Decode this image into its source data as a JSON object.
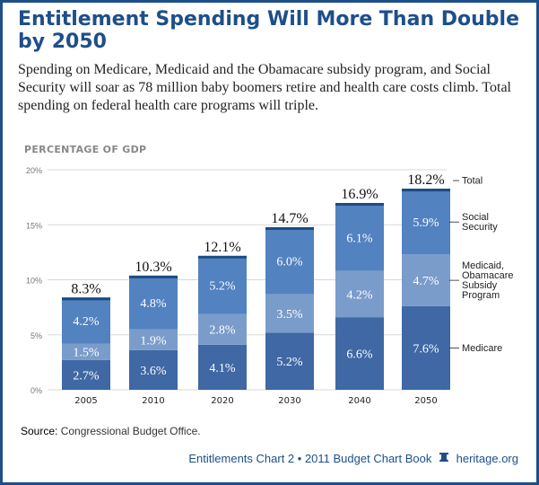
{
  "title": "Entitlement Spending Will More Than Double by 2050",
  "subtitle": "Spending on Medicare, Medicaid and the Obamacare subsidy program, and Social Security will soar as 78 million baby boomers retire and health care costs climb. Total spending on federal health care programs will triple.",
  "source_label": "Source:",
  "source_text": "Congressional Budget Office.",
  "footer": {
    "text": "Entitlements Chart 2 • 2011 Budget Chart Book",
    "site": "heritage.org",
    "icon": "liberty-bell-icon"
  },
  "colors": {
    "medicare": "#3f68a4",
    "medicaid": "#7a9ccb",
    "social_security": "#5282c0",
    "cap": "#1c4a82",
    "brand": "#1d4f8a"
  },
  "chart_data": {
    "type": "bar",
    "stacked": true,
    "ylabel": "PERCENTAGE OF GDP",
    "ylim": [
      0,
      20
    ],
    "yticks": [
      "0%",
      "5%",
      "10%",
      "15%",
      "20%"
    ],
    "ytick_values": [
      0,
      5,
      10,
      15,
      20
    ],
    "grid": true,
    "categories": [
      "2005",
      "2010",
      "2020",
      "2030",
      "2040",
      "2050"
    ],
    "series": [
      {
        "name": "Medicare",
        "values": [
          2.7,
          3.6,
          4.1,
          5.2,
          6.6,
          7.6
        ],
        "labels": [
          "2.7%",
          "3.6%",
          "4.1%",
          "5.2%",
          "6.6%",
          "7.6%"
        ]
      },
      {
        "name": "Medicaid, Obamacare Subsidy Program",
        "values": [
          1.5,
          1.9,
          2.8,
          3.5,
          4.2,
          4.7
        ],
        "labels": [
          "1.5%",
          "1.9%",
          "2.8%",
          "3.5%",
          "4.2%",
          "4.7%"
        ]
      },
      {
        "name": "Social Security",
        "values": [
          4.2,
          4.8,
          5.2,
          6.0,
          6.1,
          5.9
        ],
        "labels": [
          "4.2%",
          "4.8%",
          "5.2%",
          "6.0%",
          "6.1%",
          "5.9%"
        ]
      }
    ],
    "totals": {
      "name": "Total",
      "values": [
        8.3,
        10.3,
        12.1,
        14.7,
        16.9,
        18.2
      ],
      "labels": [
        "8.3%",
        "10.3%",
        "12.1%",
        "14.7%",
        "16.9%",
        "18.2%"
      ]
    },
    "legend_position": "right"
  }
}
